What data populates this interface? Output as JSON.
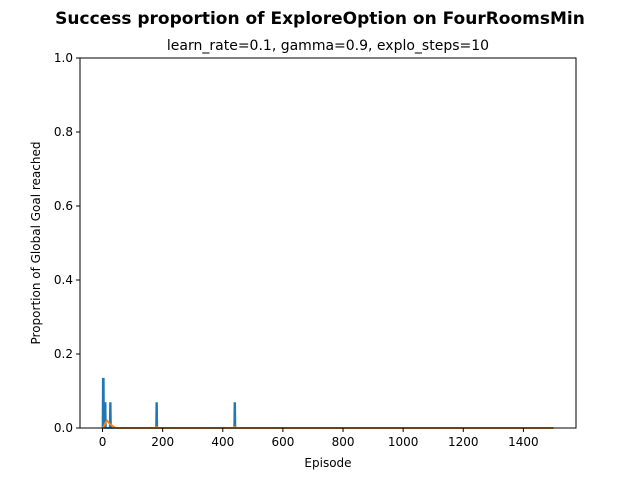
{
  "chart_data": {
    "type": "line",
    "title": "Success proportion of ExploreOption on FourRoomsMin",
    "subtitle": "learn_rate=0.1, gamma=0.9, explo_steps=10",
    "xlabel": "Episode",
    "ylabel": "Proportion of Global Goal reached",
    "xlim": [
      -75,
      1575
    ],
    "ylim": [
      0,
      1.0
    ],
    "xticks": [
      0,
      200,
      400,
      600,
      800,
      1000,
      1200,
      1400
    ],
    "yticks": [
      0.0,
      0.2,
      0.4,
      0.6,
      0.8,
      1.0
    ],
    "xtick_labels": [
      "0",
      "200",
      "400",
      "600",
      "800",
      "1000",
      "1200",
      "1400"
    ],
    "ytick_labels": [
      "0.0",
      "0.2",
      "0.4",
      "0.6",
      "0.8",
      "1.0"
    ],
    "grid": false,
    "series": [
      {
        "color": "#1f77b4",
        "x": [
          0,
          1,
          2,
          3,
          4,
          5,
          6,
          7,
          8,
          9,
          10,
          11,
          12,
          13,
          14,
          15,
          24,
          25,
          26,
          27,
          28,
          29,
          178,
          179,
          180,
          181,
          182,
          438,
          439,
          440,
          441,
          442,
          1500
        ],
        "y": [
          0,
          0.133,
          0.133,
          0.133,
          0.133,
          0,
          0,
          0,
          0.067,
          0.067,
          0.067,
          0,
          0,
          0,
          0,
          0,
          0,
          0.067,
          0.067,
          0.067,
          0,
          0,
          0,
          0.067,
          0.067,
          0.067,
          0,
          0,
          0.067,
          0.067,
          0.067,
          0,
          0
        ]
      },
      {
        "color": "#ff7f0e",
        "x": [
          0,
          5,
          10,
          15,
          20,
          25,
          30,
          35,
          40,
          45,
          175,
          180,
          185,
          435,
          440,
          445,
          1500
        ],
        "y": [
          0,
          0.005,
          0.015,
          0.02,
          0.015,
          0.01,
          0.008,
          0.004,
          0.002,
          0,
          0,
          0.003,
          0,
          0,
          0.003,
          0,
          0
        ]
      }
    ]
  }
}
